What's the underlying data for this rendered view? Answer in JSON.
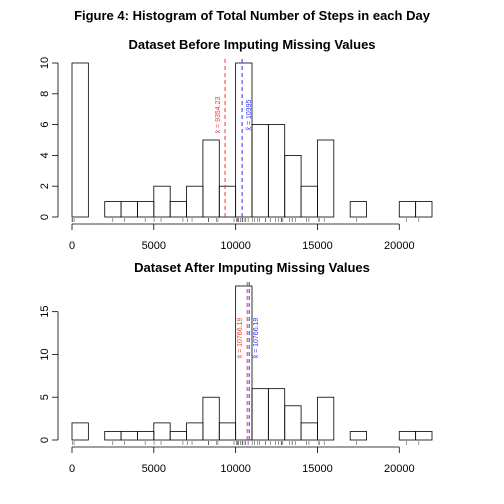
{
  "figure_title": "Figure 4: Histogram of Total Number of Steps in each Day",
  "chart_data": [
    {
      "type": "bar",
      "title": "Dataset Before Imputing Missing Values",
      "xlabel": "",
      "ylabel": "",
      "bin_width": 1000,
      "xlim": [
        0,
        22000
      ],
      "ylim": [
        0,
        10
      ],
      "x_ticks": [
        "0",
        "5000",
        "10000",
        "15000",
        "20000"
      ],
      "y_ticks": [
        "0",
        "2",
        "4",
        "6",
        "8",
        "10"
      ],
      "bins": [
        {
          "x0": 0,
          "x1": 1000,
          "count": 10
        },
        {
          "x0": 1000,
          "x1": 2000,
          "count": 0
        },
        {
          "x0": 2000,
          "x1": 3000,
          "count": 1
        },
        {
          "x0": 3000,
          "x1": 4000,
          "count": 1
        },
        {
          "x0": 4000,
          "x1": 5000,
          "count": 1
        },
        {
          "x0": 5000,
          "x1": 6000,
          "count": 2
        },
        {
          "x0": 6000,
          "x1": 7000,
          "count": 1
        },
        {
          "x0": 7000,
          "x1": 8000,
          "count": 2
        },
        {
          "x0": 8000,
          "x1": 9000,
          "count": 5
        },
        {
          "x0": 9000,
          "x1": 10000,
          "count": 2
        },
        {
          "x0": 10000,
          "x1": 11000,
          "count": 10
        },
        {
          "x0": 11000,
          "x1": 12000,
          "count": 6
        },
        {
          "x0": 12000,
          "x1": 13000,
          "count": 6
        },
        {
          "x0": 13000,
          "x1": 14000,
          "count": 4
        },
        {
          "x0": 14000,
          "x1": 15000,
          "count": 2
        },
        {
          "x0": 15000,
          "x1": 16000,
          "count": 5
        },
        {
          "x0": 16000,
          "x1": 17000,
          "count": 0
        },
        {
          "x0": 17000,
          "x1": 18000,
          "count": 1
        },
        {
          "x0": 18000,
          "x1": 19000,
          "count": 0
        },
        {
          "x0": 19000,
          "x1": 20000,
          "count": 0
        },
        {
          "x0": 20000,
          "x1": 21000,
          "count": 1
        },
        {
          "x0": 21000,
          "x1": 22000,
          "count": 1
        }
      ],
      "vlines": [
        {
          "x": 9354.23,
          "label": "x̄ = 9354.23",
          "color": "#ff3030"
        },
        {
          "x": 10395,
          "label": "x̃ = 10395",
          "color": "#3030ff"
        }
      ],
      "rug": [
        0,
        41,
        126,
        2492,
        3219,
        4472,
        5018,
        5441,
        6778,
        7047,
        7336,
        8334,
        8355,
        8821,
        8918,
        9900,
        10056,
        10119,
        10139,
        10183,
        10304,
        10395,
        10439,
        10571,
        10600,
        10765,
        11015,
        11162,
        11352,
        11458,
        11829,
        11834,
        12116,
        12426,
        12608,
        12787,
        12811,
        12883,
        13294,
        13452,
        13460,
        13646,
        14339,
        14478,
        15084,
        15098,
        15110,
        15414,
        17382,
        20427,
        21194
      ]
    },
    {
      "type": "bar",
      "title": "Dataset After Imputing Missing Values",
      "xlabel": "",
      "ylabel": "",
      "bin_width": 1000,
      "xlim": [
        0,
        22000
      ],
      "ylim": [
        0,
        18
      ],
      "x_ticks": [
        "0",
        "5000",
        "10000",
        "15000",
        "20000"
      ],
      "y_ticks": [
        "0",
        "5",
        "10",
        "15"
      ],
      "bins": [
        {
          "x0": 0,
          "x1": 1000,
          "count": 2
        },
        {
          "x0": 1000,
          "x1": 2000,
          "count": 0
        },
        {
          "x0": 2000,
          "x1": 3000,
          "count": 1
        },
        {
          "x0": 3000,
          "x1": 4000,
          "count": 1
        },
        {
          "x0": 4000,
          "x1": 5000,
          "count": 1
        },
        {
          "x0": 5000,
          "x1": 6000,
          "count": 2
        },
        {
          "x0": 6000,
          "x1": 7000,
          "count": 1
        },
        {
          "x0": 7000,
          "x1": 8000,
          "count": 2
        },
        {
          "x0": 8000,
          "x1": 9000,
          "count": 5
        },
        {
          "x0": 9000,
          "x1": 10000,
          "count": 2
        },
        {
          "x0": 10000,
          "x1": 11000,
          "count": 18
        },
        {
          "x0": 11000,
          "x1": 12000,
          "count": 6
        },
        {
          "x0": 12000,
          "x1": 13000,
          "count": 6
        },
        {
          "x0": 13000,
          "x1": 14000,
          "count": 4
        },
        {
          "x0": 14000,
          "x1": 15000,
          "count": 2
        },
        {
          "x0": 15000,
          "x1": 16000,
          "count": 5
        },
        {
          "x0": 16000,
          "x1": 17000,
          "count": 0
        },
        {
          "x0": 17000,
          "x1": 18000,
          "count": 1
        },
        {
          "x0": 18000,
          "x1": 19000,
          "count": 0
        },
        {
          "x0": 19000,
          "x1": 20000,
          "count": 0
        },
        {
          "x0": 20000,
          "x1": 21000,
          "count": 1
        },
        {
          "x0": 21000,
          "x1": 22000,
          "count": 1
        }
      ],
      "vlines": [
        {
          "x": 10766.19,
          "label": "x̄ = 10766.19",
          "color": "#ff3030"
        },
        {
          "x": 10766.19,
          "label": "x̃ = 10766.19",
          "color": "#3030ff"
        }
      ],
      "rug": [
        41,
        126,
        2492,
        3219,
        4472,
        5018,
        5441,
        6778,
        7047,
        7336,
        8334,
        8355,
        8821,
        8918,
        9900,
        10056,
        10119,
        10139,
        10183,
        10304,
        10395,
        10439,
        10571,
        10600,
        10765,
        10766,
        11015,
        11162,
        11352,
        11458,
        11829,
        11834,
        12116,
        12426,
        12608,
        12787,
        12811,
        12883,
        13294,
        13452,
        13460,
        13646,
        14339,
        14478,
        15084,
        15098,
        15110,
        15414,
        17382,
        20427,
        21194
      ]
    }
  ]
}
